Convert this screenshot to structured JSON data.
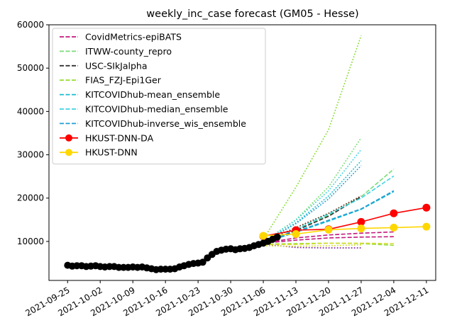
{
  "chart_data": {
    "type": "line",
    "title": "weekly_inc_case forecast (GM05 - Hesse)",
    "xlabel": "",
    "ylabel": "",
    "x_axis_type": "date",
    "xlim": [
      "2021-09-21",
      "2021-12-13"
    ],
    "ylim": [
      1000,
      60000
    ],
    "x_ticks": [
      "2021-09-25",
      "2021-10-02",
      "2021-10-09",
      "2021-10-16",
      "2021-10-23",
      "2021-10-30",
      "2021-11-06",
      "2021-11-13",
      "2021-11-20",
      "2021-11-27",
      "2021-12-04",
      "2021-12-11"
    ],
    "y_ticks": [
      10000,
      20000,
      30000,
      40000,
      50000,
      60000
    ],
    "grid": false,
    "legend_position": "upper left",
    "observed": {
      "color": "#000000",
      "points": [
        [
          "2021-09-25",
          4500
        ],
        [
          "2021-09-26",
          4300
        ],
        [
          "2021-09-27",
          4400
        ],
        [
          "2021-09-28",
          4400
        ],
        [
          "2021-09-29",
          4200
        ],
        [
          "2021-09-30",
          4300
        ],
        [
          "2021-10-01",
          4400
        ],
        [
          "2021-10-02",
          4200
        ],
        [
          "2021-10-03",
          4100
        ],
        [
          "2021-10-04",
          4200
        ],
        [
          "2021-10-05",
          4200
        ],
        [
          "2021-10-06",
          4000
        ],
        [
          "2021-10-07",
          4000
        ],
        [
          "2021-10-08",
          4000
        ],
        [
          "2021-10-09",
          4100
        ],
        [
          "2021-10-10",
          4000
        ],
        [
          "2021-10-11",
          4100
        ],
        [
          "2021-10-12",
          3900
        ],
        [
          "2021-10-13",
          3700
        ],
        [
          "2021-10-14",
          3500
        ],
        [
          "2021-10-15",
          3600
        ],
        [
          "2021-10-16",
          3600
        ],
        [
          "2021-10-17",
          3600
        ],
        [
          "2021-10-18",
          3700
        ],
        [
          "2021-10-19",
          4100
        ],
        [
          "2021-10-20",
          4400
        ],
        [
          "2021-10-21",
          4700
        ],
        [
          "2021-10-22",
          4900
        ],
        [
          "2021-10-23",
          5000
        ],
        [
          "2021-10-24",
          5200
        ],
        [
          "2021-10-25",
          6200
        ],
        [
          "2021-10-26",
          7000
        ],
        [
          "2021-10-27",
          7700
        ],
        [
          "2021-10-28",
          8000
        ],
        [
          "2021-10-29",
          8200
        ],
        [
          "2021-10-30",
          8300
        ],
        [
          "2021-10-31",
          8100
        ],
        [
          "2021-11-01",
          8300
        ],
        [
          "2021-11-02",
          8400
        ],
        [
          "2021-11-03",
          8600
        ],
        [
          "2021-11-04",
          9000
        ],
        [
          "2021-11-05",
          9300
        ],
        [
          "2021-11-06",
          9600
        ],
        [
          "2021-11-07",
          10000
        ],
        [
          "2021-11-08",
          10500
        ],
        [
          "2021-11-09",
          11000
        ]
      ]
    },
    "series": [
      {
        "name": "CovidMetrics-epiBATS",
        "color": "#c2187c",
        "style": "dashed",
        "legend": true,
        "points": [
          [
            "2021-11-06",
            9600
          ],
          [
            "2021-11-13",
            10300
          ],
          [
            "2021-11-20",
            10800
          ],
          [
            "2021-11-27",
            11000
          ],
          [
            "2021-12-04",
            11100
          ]
        ]
      },
      {
        "name": "CovidMetrics-epiBATS-upper",
        "color": "#c2187c",
        "style": "dashed",
        "legend": false,
        "points": [
          [
            "2021-11-06",
            9600
          ],
          [
            "2021-11-13",
            10800
          ],
          [
            "2021-11-20",
            11500
          ],
          [
            "2021-11-27",
            11900
          ],
          [
            "2021-12-04",
            12200
          ]
        ]
      },
      {
        "name": "CovidMetrics-epiBATS-lower",
        "color": "#7b1fa2",
        "style": "dotted",
        "legend": false,
        "points": [
          [
            "2021-11-06",
            9400
          ],
          [
            "2021-11-13",
            8600
          ],
          [
            "2021-11-20",
            8500
          ],
          [
            "2021-11-27",
            8500
          ]
        ]
      },
      {
        "name": "ITWW-county_repro",
        "color": "#77dd77",
        "style": "dashed",
        "legend": true,
        "points": [
          [
            "2021-11-06",
            9700
          ],
          [
            "2021-11-13",
            12600
          ],
          [
            "2021-11-20",
            16100
          ],
          [
            "2021-11-27",
            20300
          ],
          [
            "2021-12-04",
            26700
          ]
        ]
      },
      {
        "name": "ITWW-county_repro-upper",
        "color": "#77dd77",
        "style": "dotted",
        "legend": false,
        "points": [
          [
            "2021-11-06",
            9900
          ],
          [
            "2021-11-13",
            15000
          ],
          [
            "2021-11-20",
            22600
          ],
          [
            "2021-11-27",
            33900
          ]
        ]
      },
      {
        "name": "USC-SIkJalpha",
        "color": "#333333",
        "style": "dashed",
        "legend": true,
        "points": [
          [
            "2021-11-06",
            9700
          ],
          [
            "2021-11-13",
            12500
          ],
          [
            "2021-11-20",
            15800
          ],
          [
            "2021-11-27",
            20300
          ]
        ]
      },
      {
        "name": "USC-SIkJalpha-dot",
        "color": "#5c3317",
        "style": "dotted",
        "legend": false,
        "points": [
          [
            "2021-11-06",
            9900
          ],
          [
            "2021-11-13",
            13200
          ],
          [
            "2021-11-20",
            16500
          ],
          [
            "2021-11-27",
            20500
          ]
        ]
      },
      {
        "name": "FIAS_FZJ-Epi1Ger",
        "color": "#99dd33",
        "style": "dashed",
        "legend": true,
        "points": [
          [
            "2021-11-06",
            9400
          ],
          [
            "2021-11-13",
            9500
          ],
          [
            "2021-11-20",
            9600
          ],
          [
            "2021-11-27",
            9500
          ],
          [
            "2021-12-04",
            9100
          ]
        ]
      },
      {
        "name": "FIAS_FZJ-Epi1Ger-upper",
        "color": "#88dd33",
        "style": "dotted",
        "legend": false,
        "points": [
          [
            "2021-11-06",
            10500
          ],
          [
            "2021-11-13",
            22500
          ],
          [
            "2021-11-20",
            35800
          ],
          [
            "2021-11-27",
            57500
          ]
        ]
      },
      {
        "name": "FIAS_FZJ-Epi1Ger-mid",
        "color": "#d4dd33",
        "style": "dashed",
        "legend": false,
        "points": [
          [
            "2021-11-06",
            9300
          ],
          [
            "2021-11-13",
            9300
          ],
          [
            "2021-11-20",
            9600
          ],
          [
            "2021-11-27",
            9600
          ],
          [
            "2021-12-04",
            9500
          ]
        ]
      },
      {
        "name": "FIAS_FZJ-Epi1Ger-lower",
        "color": "#d4dd33",
        "style": "dotted",
        "legend": false,
        "points": [
          [
            "2021-11-06",
            9000
          ],
          [
            "2021-11-13",
            8900
          ],
          [
            "2021-11-20",
            9000
          ],
          [
            "2021-11-27",
            9200
          ]
        ]
      },
      {
        "name": "KITCOVIDhub-mean_ensemble",
        "color": "#17becf",
        "style": "dashed",
        "legend": true,
        "points": [
          [
            "2021-11-06",
            9700
          ],
          [
            "2021-11-13",
            12100
          ],
          [
            "2021-11-20",
            14700
          ],
          [
            "2021-11-27",
            17400
          ],
          [
            "2021-12-04",
            21500
          ]
        ]
      },
      {
        "name": "KITCOVIDhub-mean_ensemble-upper",
        "color": "#17becf",
        "style": "dotted",
        "legend": false,
        "points": [
          [
            "2021-11-06",
            9800
          ],
          [
            "2021-11-13",
            14300
          ],
          [
            "2021-11-20",
            20500
          ],
          [
            "2021-11-27",
            28600
          ]
        ]
      },
      {
        "name": "KITCOVIDhub-median_ensemble",
        "color": "#3fd2e0",
        "style": "dashed",
        "legend": true,
        "points": [
          [
            "2021-11-06",
            9700
          ],
          [
            "2021-11-13",
            12800
          ],
          [
            "2021-11-20",
            16300
          ],
          [
            "2021-11-27",
            20000
          ],
          [
            "2021-12-04",
            25100
          ]
        ]
      },
      {
        "name": "KITCOVIDhub-median_ensemble-upper",
        "color": "#3fd2e0",
        "style": "dotted",
        "legend": false,
        "points": [
          [
            "2021-11-06",
            9900
          ],
          [
            "2021-11-13",
            14900
          ],
          [
            "2021-11-20",
            21700
          ],
          [
            "2021-11-27",
            31200
          ]
        ]
      },
      {
        "name": "KITCOVIDhub-inverse_wis_ensemble",
        "color": "#1f9fd4",
        "style": "dashed",
        "legend": true,
        "points": [
          [
            "2021-11-06",
            9700
          ],
          [
            "2021-11-13",
            12300
          ],
          [
            "2021-11-20",
            14900
          ],
          [
            "2021-11-27",
            17500
          ],
          [
            "2021-12-04",
            21700
          ]
        ]
      },
      {
        "name": "KITCOVIDhub-inverse_wis_ensemble-upper",
        "color": "#1f9fd4",
        "style": "dotted",
        "legend": false,
        "points": [
          [
            "2021-11-06",
            9800
          ],
          [
            "2021-11-13",
            14100
          ],
          [
            "2021-11-20",
            19800
          ],
          [
            "2021-11-27",
            27500
          ]
        ]
      },
      {
        "name": "HKUST-DNN-DA",
        "color": "#ff0000",
        "style": "solid-marker",
        "legend": true,
        "points": [
          [
            "2021-11-06",
            11200
          ],
          [
            "2021-11-13",
            12600
          ],
          [
            "2021-11-20",
            12800
          ],
          [
            "2021-11-27",
            14500
          ],
          [
            "2021-12-04",
            16500
          ],
          [
            "2021-12-11",
            17800
          ]
        ]
      },
      {
        "name": "HKUST-DNN",
        "color": "#ffd700",
        "style": "solid-marker",
        "legend": true,
        "points": [
          [
            "2021-11-06",
            11300
          ],
          [
            "2021-11-13",
            11700
          ],
          [
            "2021-11-20",
            12700
          ],
          [
            "2021-11-27",
            13000
          ],
          [
            "2021-12-04",
            13200
          ],
          [
            "2021-12-11",
            13400
          ]
        ]
      }
    ]
  }
}
